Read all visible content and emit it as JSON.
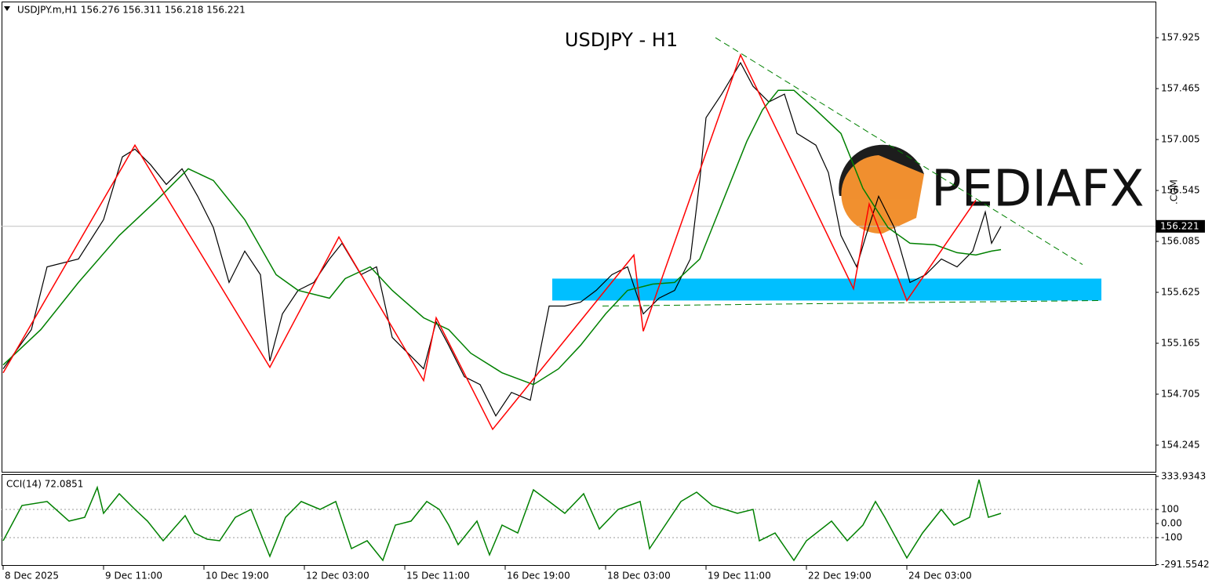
{
  "chart_data": [
    {
      "type": "line",
      "header": "USDJPY.m,H1  156.276 156.311 156.218 156.221",
      "title": "USDJPY - H1",
      "watermark": "PEDIAFX",
      "watermark_suffix": ".COM",
      "xlim": [
        -0.5,
        367.25
      ],
      "xticks": [
        {
          "value": 0,
          "label": "8 Dec 2025"
        },
        {
          "value": 32,
          "label": "9 Dec 11:00"
        },
        {
          "value": 64,
          "label": "10 Dec 19:00"
        },
        {
          "value": 96,
          "label": "12 Dec 03:00"
        },
        {
          "value": 128,
          "label": "15 Dec 11:00"
        },
        {
          "value": 160,
          "label": "16 Dec 19:00"
        },
        {
          "value": 192,
          "label": "18 Dec 03:00"
        },
        {
          "value": 224,
          "label": "19 Dec 11:00"
        },
        {
          "value": 256,
          "label": "22 Dec 19:00"
        },
        {
          "value": 288,
          "label": "24 Dec 03:00"
        }
      ],
      "ylim": [
        153.997,
        158.251
      ],
      "yticks": [
        157.925,
        157.465,
        157.005,
        156.545,
        156.085,
        155.625,
        155.165,
        154.705,
        154.245
      ],
      "current_price": 156.221,
      "series": [
        {
          "color": "#000000",
          "x": [
            0,
            9,
            14,
            24,
            32,
            38,
            42,
            47,
            52,
            57,
            62,
            67,
            72,
            77,
            82,
            85,
            89,
            94,
            99,
            104,
            108,
            114,
            119,
            124,
            129,
            134,
            138,
            142,
            147,
            152,
            157,
            162,
            168,
            172,
            174,
            179,
            184,
            189,
            194,
            199,
            204,
            209,
            214,
            219,
            222,
            224,
            229,
            235,
            239,
            244,
            249,
            253,
            259,
            263,
            267,
            272,
            275,
            279,
            284,
            289,
            294,
            299,
            304,
            309,
            313,
            315,
            318
          ],
          "values": [
            154.934,
            155.288,
            155.855,
            155.926,
            156.281,
            156.848,
            156.919,
            156.777,
            156.6,
            156.741,
            156.493,
            156.21,
            155.714,
            155.997,
            155.784,
            155.005,
            155.43,
            155.643,
            155.714,
            155.926,
            156.068,
            155.784,
            155.855,
            155.217,
            155.076,
            154.934,
            155.359,
            155.146,
            154.863,
            154.792,
            154.509,
            154.721,
            154.65,
            155.217,
            155.501,
            155.501,
            155.536,
            155.643,
            155.784,
            155.855,
            155.43,
            155.572,
            155.643,
            155.926,
            156.635,
            157.202,
            157.415,
            157.698,
            157.486,
            157.344,
            157.415,
            157.06,
            156.954,
            156.706,
            156.139,
            155.855,
            156.139,
            156.493,
            156.21,
            155.714,
            155.784,
            155.926,
            155.855,
            155.997,
            156.351,
            156.068,
            156.221
          ]
        },
        {
          "color": "#008000",
          "x": [
            0,
            12,
            24,
            37,
            49,
            59,
            67,
            77,
            87,
            94,
            104,
            109,
            117,
            124,
            134,
            142,
            149,
            159,
            169,
            177,
            184,
            192,
            199,
            207,
            214,
            222,
            229,
            237,
            242,
            247,
            252,
            259,
            267,
            274,
            282,
            289,
            297,
            304,
            310,
            315,
            318
          ],
          "values": [
            154.969,
            155.288,
            155.714,
            156.139,
            156.458,
            156.741,
            156.635,
            156.281,
            155.784,
            155.643,
            155.572,
            155.749,
            155.855,
            155.643,
            155.395,
            155.288,
            155.076,
            154.898,
            154.792,
            154.934,
            155.146,
            155.43,
            155.643,
            155.699,
            155.714,
            155.926,
            156.422,
            156.989,
            157.273,
            157.45,
            157.45,
            157.273,
            157.06,
            156.564,
            156.21,
            156.068,
            156.054,
            155.983,
            155.962,
            155.997,
            156.011
          ]
        },
        {
          "color": "#ff0000",
          "x": [
            0,
            42,
            85,
            107,
            134,
            138,
            156,
            201,
            204,
            235,
            271,
            276,
            288,
            310
          ],
          "values": [
            154.898,
            156.954,
            154.948,
            156.125,
            154.828,
            155.395,
            154.388,
            155.962,
            155.274,
            157.769,
            155.657,
            156.422,
            155.551,
            156.458
          ]
        }
      ],
      "zone": {
        "x": [
          175,
          350
        ],
        "y": [
          155.551,
          155.749
        ],
        "color": "#00bfff"
      },
      "trendlines": [
        {
          "x": [
            227,
            344
          ],
          "y": [
            157.925,
            155.876
          ],
          "color": "#008000"
        },
        {
          "x": [
            191,
            350
          ],
          "y": [
            155.501,
            155.551
          ],
          "color": "#008000"
        }
      ]
    },
    {
      "type": "line",
      "label": "CCI(14) 72.0851",
      "xlim": [
        -0.5,
        367.25
      ],
      "ylim": [
        -300,
        350
      ],
      "yticks": [
        333.9343,
        100,
        {
          "value": 0,
          "label": "0.00"
        },
        -100,
        -291.5542
      ],
      "levels": [
        100,
        -100
      ],
      "series": [
        {
          "color": "#008000",
          "x": [
            0,
            6,
            14,
            21,
            26,
            30,
            32,
            37,
            42,
            46,
            51,
            58,
            61,
            65,
            69,
            74,
            79,
            85,
            90,
            95,
            101,
            106,
            111,
            116,
            121,
            125,
            130,
            135,
            139,
            142,
            145,
            151,
            155,
            159,
            164,
            169,
            174,
            179,
            185,
            190,
            196,
            203,
            206,
            211,
            216,
            221,
            226,
            234,
            239,
            241,
            246,
            252,
            256,
            264,
            269,
            274,
            278,
            281,
            288,
            293,
            299,
            303,
            308,
            311,
            314,
            318
          ],
          "values": [
            -122,
            128,
            156,
            17,
            44,
            256,
            72,
            211,
            100,
            17,
            -122,
            56,
            -67,
            -111,
            -122,
            44,
            100,
            -233,
            44,
            156,
            100,
            156,
            -178,
            -122,
            -261,
            -11,
            17,
            156,
            100,
            -11,
            -150,
            17,
            -222,
            -11,
            -67,
            239,
            156,
            72,
            211,
            -39,
            100,
            156,
            -178,
            -11,
            156,
            222,
            128,
            72,
            100,
            -122,
            -67,
            -261,
            -122,
            17,
            -122,
            -11,
            156,
            44,
            -244,
            -67,
            100,
            -11,
            44,
            311,
            44,
            72.0851
          ]
        }
      ]
    }
  ]
}
